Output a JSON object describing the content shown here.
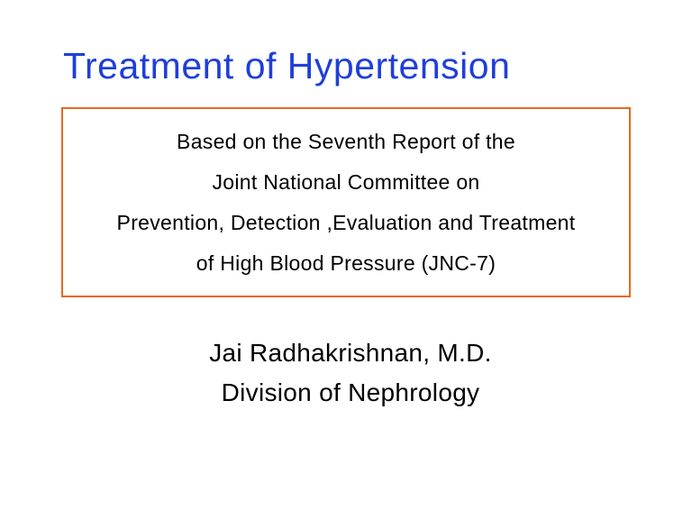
{
  "title": {
    "text": "Treatment of Hypertension",
    "color": "#1f3fd9"
  },
  "subtitle_box": {
    "border_color": "#e56a1e",
    "text_color": "#000000",
    "lines": [
      "Based on the Seventh Report of the",
      "Joint National Committee on",
      "Prevention, Detection ,Evaluation and Treatment",
      "of High Blood Pressure (JNC-7)"
    ]
  },
  "author": {
    "text_color": "#000000",
    "lines": [
      "Jai Radhakrishnan, M.D.",
      "Division of Nephrology"
    ]
  },
  "background_color": "#ffffff"
}
